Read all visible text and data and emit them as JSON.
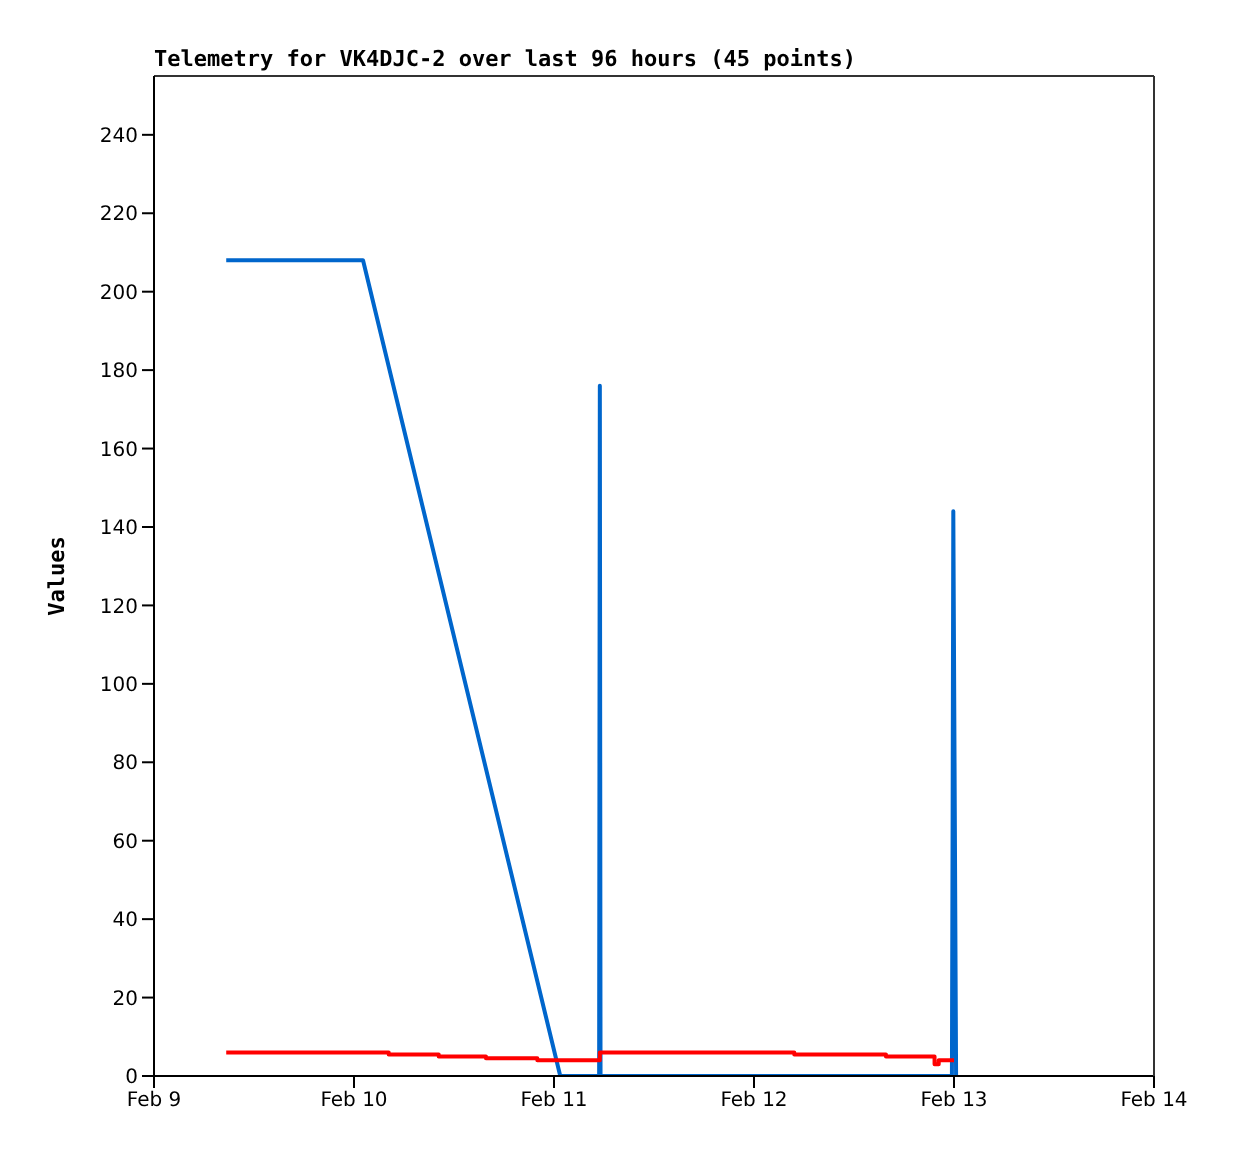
{
  "chart_data": {
    "type": "line",
    "title": "Telemetry for VK4DJC-2 over last 96 hours (45 points)",
    "ylabel": "Values",
    "xlim": [
      "--02-09",
      "--02-14"
    ],
    "xticks": [
      {
        "value": "--02-09",
        "label": "Feb 9"
      },
      {
        "value": "--02-10",
        "label": "Feb 10"
      },
      {
        "value": "--02-11",
        "label": "Feb 11"
      },
      {
        "value": "--02-12",
        "label": "Feb 12"
      },
      {
        "value": "--02-13",
        "label": "Feb 13"
      },
      {
        "value": "--02-14",
        "label": "Feb 14"
      }
    ],
    "ylim": [
      0,
      255
    ],
    "yticks": [
      0,
      20,
      40,
      60,
      80,
      100,
      120,
      140,
      160,
      180,
      200,
      220,
      240
    ],
    "grid": false,
    "legend": false,
    "marker": "none",
    "line_style": "solid",
    "series": [
      {
        "type": "line",
        "color": "#0066cc",
        "x": [
          "--02-09T08:40",
          "--02-10T01:05",
          "--02-11T00:45",
          "--02-11T05:25",
          "--02-11T05:30",
          "--02-11T05:35",
          "--02-12T23:45",
          "--02-12T23:50",
          "--02-12T23:55",
          "--02-13T00:15"
        ],
        "values": [
          208,
          208,
          0,
          0,
          176,
          0,
          0,
          64,
          144,
          0
        ]
      },
      {
        "type": "step",
        "color": "#ff0000",
        "x": [
          "--02-09T08:40",
          "--02-10T04:10",
          "--02-10T10:10",
          "--02-10T15:50",
          "--02-10T22:00",
          "--02-11T05:30",
          "--02-12T04:50",
          "--02-12T15:50",
          "--02-12T21:40",
          "--02-12T22:10",
          "--02-13T00:00"
        ],
        "values": [
          6,
          5.5,
          5,
          4.5,
          4,
          6,
          5.5,
          5,
          3,
          4,
          4
        ]
      }
    ]
  }
}
